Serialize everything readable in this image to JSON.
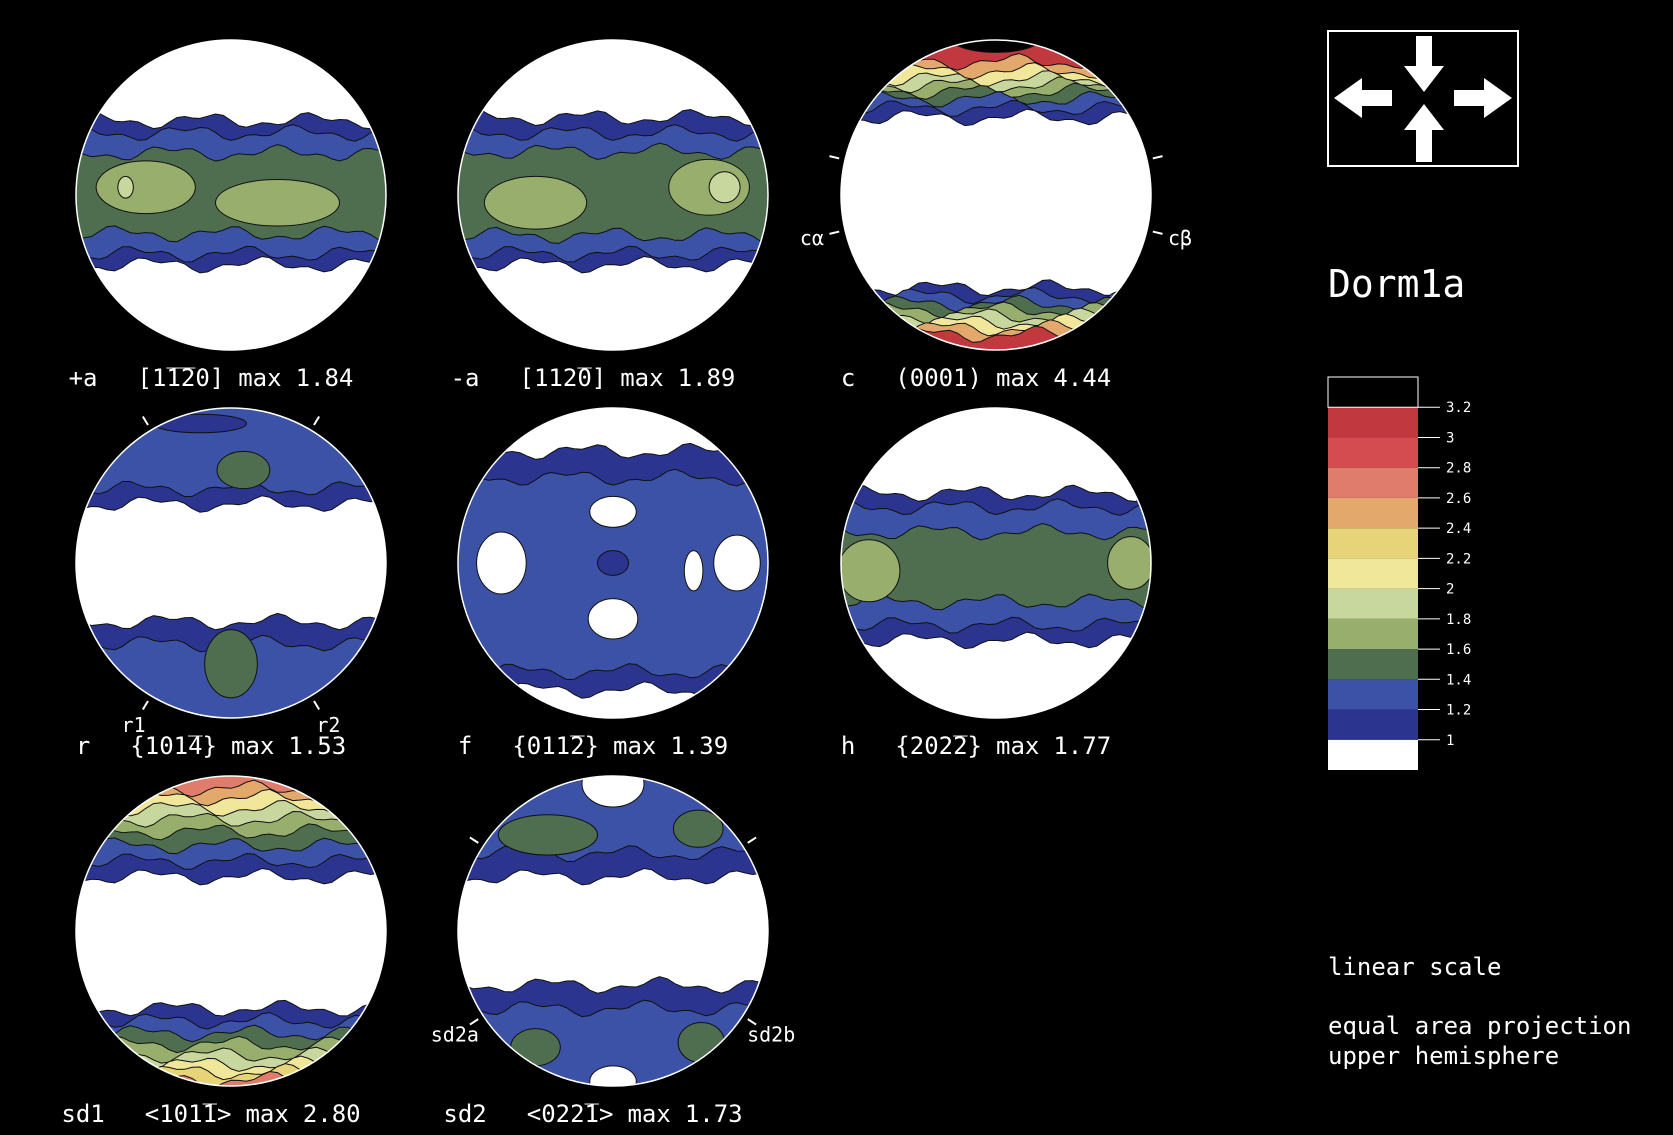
{
  "title": "Dorm1a",
  "max_word": "max",
  "panels": [
    {
      "name": "+a",
      "index": "[1̅1̅20]",
      "max": 1.84,
      "poles": []
    },
    {
      "name": "-a",
      "index": "[112̅0]",
      "max": 1.89,
      "poles": []
    },
    {
      "name": "c",
      "index": "(0001)",
      "max": 4.44,
      "poles": [
        "cα",
        "cβ"
      ]
    },
    {
      "name": "r",
      "index": "{101̅4}",
      "max": 1.53,
      "poles": [
        "r1",
        "r2"
      ]
    },
    {
      "name": "f",
      "index": "{011̅2}",
      "max": 1.39,
      "poles": []
    },
    {
      "name": "h",
      "index": "{202̅2}",
      "max": 1.77,
      "poles": []
    },
    {
      "name": "sd1",
      "index": "<101̅1>",
      "max": 2.8,
      "poles": []
    },
    {
      "name": "sd2",
      "index": "<022̅1>",
      "max": 1.73,
      "poles": [
        "sd2a",
        "sd2b"
      ]
    }
  ],
  "legend": {
    "base_color": "#ffffff",
    "levels": [
      {
        "value": 1,
        "color": "#2b3590"
      },
      {
        "value": 1.2,
        "color": "#3b52a6"
      },
      {
        "value": 1.4,
        "color": "#4e6e4f"
      },
      {
        "value": 1.6,
        "color": "#97ae6c"
      },
      {
        "value": 1.8,
        "color": "#c8d79d"
      },
      {
        "value": 2,
        "color": "#f0e79a"
      },
      {
        "value": 2.2,
        "color": "#e7d479"
      },
      {
        "value": 2.4,
        "color": "#e3a96c"
      },
      {
        "value": 2.6,
        "color": "#df7c6b"
      },
      {
        "value": 2.8,
        "color": "#d44b50"
      },
      {
        "value": 3,
        "color": "#c1393f"
      },
      {
        "value": 3.2,
        "color": "#000000"
      }
    ]
  },
  "notes": [
    "linear scale",
    "equal area projection",
    "upper hemisphere"
  ]
}
